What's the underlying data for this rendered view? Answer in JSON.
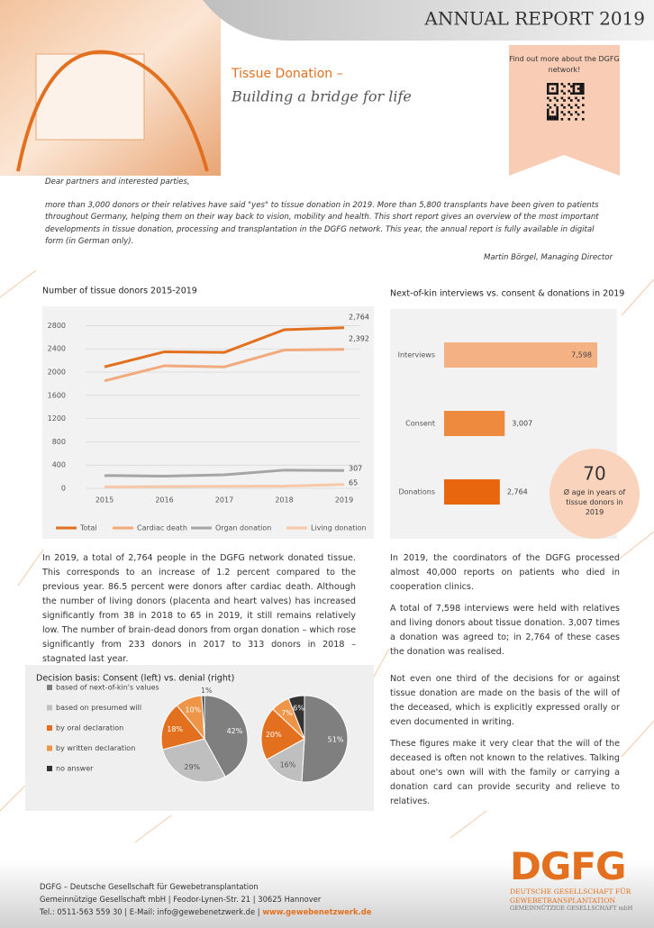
{
  "header": {
    "title": "ANNUAL REPORT 2019",
    "tagline": "Tissue Donation –",
    "subtitle": "Building a bridge for life",
    "qr_text": "Find out more about the DGFG network!"
  },
  "letter": {
    "salutation": "Dear partners and interested parties,",
    "body": "more than 3,000 donors or their relatives have said \"yes\" to tissue donation in 2019. More than 5,800 transplants have been given to patients throughout Germany, helping them on their way back to vision, mobility and health. This short report gives an overview of the most important developments in tissue donation, processing and transplantation in the DGFG network. This year, the annual report is fully available in digital form (in German only).",
    "signature": "Martin Börgel, Managing Director"
  },
  "chart_data": [
    {
      "type": "line",
      "title": "Number of tissue donors 2015-2019",
      "categories": [
        "2015",
        "2016",
        "2017",
        "2018",
        "2019"
      ],
      "series": [
        {
          "name": "Total",
          "color": "#e2701f",
          "values": [
            2090,
            2350,
            2340,
            2730,
            2764
          ],
          "value_labels": [
            null,
            null,
            null,
            null,
            "2,764"
          ]
        },
        {
          "name": "Cardiac death",
          "color": "#f1aa7c",
          "values": [
            1850,
            2110,
            2090,
            2380,
            2392
          ],
          "value_labels": [
            null,
            null,
            null,
            null,
            "2,392"
          ]
        },
        {
          "name": "Organ donation",
          "color": "#a5a5a5",
          "values": [
            220,
            210,
            233,
            313,
            307
          ],
          "value_labels": [
            null,
            null,
            null,
            null,
            "307"
          ]
        },
        {
          "name": "Living donation",
          "color": "#f6c8a8",
          "values": [
            25,
            30,
            35,
            38,
            65
          ],
          "value_labels": [
            null,
            null,
            null,
            null,
            "65"
          ]
        }
      ],
      "ylim": [
        0,
        2900
      ],
      "yticks": [
        0,
        400,
        800,
        1200,
        1600,
        2000,
        2400,
        2800
      ],
      "grid": true,
      "legend": "bottom"
    },
    {
      "type": "hbar",
      "title": "Next-of-kin interviews vs. consent & donations in 2019",
      "categories": [
        "Interviews",
        "Consent",
        "Donations"
      ],
      "values": [
        7598,
        3007,
        2764
      ],
      "value_labels": [
        "7,598",
        "3,007",
        "2,764"
      ],
      "colors": [
        "#f4b183",
        "#ee8a3d",
        "#e8660e"
      ],
      "xlim": [
        0,
        8000
      ]
    },
    {
      "type": "pie",
      "title": "Decision basis: Consent (left) vs. denial (right)",
      "categories": [
        "based of next-of-kin's values",
        "based on presumed will",
        "by oral declaration",
        "by written declaration",
        "no answer"
      ],
      "colors": [
        "#7f7f7f",
        "#bfbfbf",
        "#e2701f",
        "#ef9548",
        "#333333"
      ],
      "series": [
        {
          "values": [
            42,
            29,
            18,
            10,
            1
          ],
          "value_labels": [
            "42%",
            "29%",
            "18%",
            "10%",
            "1%"
          ]
        },
        {
          "values": [
            51,
            16,
            20,
            7,
            6
          ],
          "value_labels": [
            "51%",
            "16%",
            "20%",
            "7%",
            "6%"
          ]
        }
      ],
      "legend": "left"
    }
  ],
  "callout": {
    "number": "70",
    "caption": "Ø age in years of tissue donors in 2019"
  },
  "text": {
    "left": "In 2019, a total of 2,764 people in the DGFG network donated tissue. This corresponds to an increase of 1.2 percent compared to the previous year. 86.5 percent were donors after cardiac death. Although the number of living donors (placenta and heart valves) has increased significantly from 38 in 2018 to 65 in 2019, it still remains relatively low. The number of brain-dead donors from organ donation – which rose significantly from 233 donors in 2017 to 313 donors in 2018 – stagnated last year.",
    "right": [
      "In 2019, the coordinators of the DGFG processed almost 40,000 reports on patients who died in cooperation clinics.",
      "A total of 7,598 interviews were held with relatives and living donors about tissue donation. 3,007 times a donation was agreed to; in 2,764 of these cases the donation was realised.",
      "Not even one third of the decisions for or against tissue donation are made on the basis of the will of the deceased, which is explicitly expressed orally or even documented in writing.",
      "These figures make it very clear that the will of the deceased is often not known to the relatives. Talking about one's own will with the family or carrying a donation card can provide security and relieve to relatives."
    ]
  },
  "footer": {
    "lines": [
      "DGFG – Deutsche Gesellschaft für Gewebetransplantation",
      "Gemeinnützige Gesellschaft mbH | Feodor-Lynen-Str. 21 | 30625 Hannover",
      "Tel.: 0511-563 559 30 | E-Mail: info@gewebenetzwerk.de |"
    ],
    "web": "www.gewebenetzwerk.de",
    "logo": {
      "mark": "DGFG",
      "lines": [
        "DEUTSCHE GESELLSCHAFT FÜR",
        "GEWEBETRANSPLANTATION",
        "GEMEINNÜTZIGE GESELLSCHAFT mbH"
      ]
    }
  }
}
